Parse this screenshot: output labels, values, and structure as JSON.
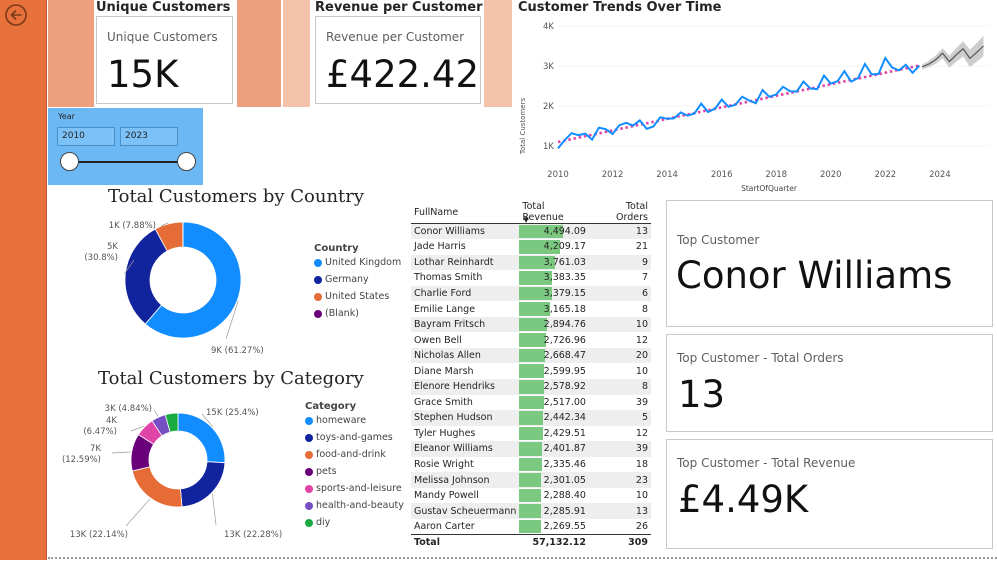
{
  "kpis": {
    "unique_customers_header": "Unique Customers",
    "unique_customers_label": "Unique Customers",
    "unique_customers_value": "15K",
    "revenue_per_customer_header": "Revenue per Customer",
    "revenue_per_customer_label": "Revenue per Customer",
    "revenue_per_customer_value": "£422.42"
  },
  "slicer": {
    "title": "Year",
    "from": "2010",
    "to": "2023"
  },
  "trend": {
    "title": "Customer Trends Over Time",
    "y_label": "Total Customers",
    "x_label": "StartOfQuarter",
    "y_ticks": [
      "1K",
      "2K",
      "3K",
      "4K"
    ],
    "x_ticks": [
      "2010",
      "2012",
      "2014",
      "2016",
      "2018",
      "2020",
      "2022",
      "2024"
    ]
  },
  "country_chart": {
    "title": "Total Customers by Country",
    "legend_title": "Country",
    "slices": [
      {
        "name": "United Kingdom",
        "value": 61.27,
        "color": "#118DFF",
        "label": "9K (61.27%)"
      },
      {
        "name": "Germany",
        "value": 30.8,
        "color": "#12239E",
        "label_line1": "5K",
        "label_line2": "(30.8%)"
      },
      {
        "name": "United States",
        "value": 7.88,
        "color": "#E66C37",
        "label": "1K (7.88%)"
      },
      {
        "name": "(Blank)",
        "value": 0.05,
        "color": "#6B007B",
        "label": ""
      }
    ]
  },
  "category_chart": {
    "title": "Total Customers by Category",
    "legend_title": "Category",
    "slices": [
      {
        "name": "homeware",
        "value": 25.4,
        "color": "#118DFF",
        "label": "15K (25.4%)"
      },
      {
        "name": "toys-and-games",
        "value": 22.28,
        "color": "#12239E",
        "label": "13K (22.28%)"
      },
      {
        "name": "food-and-drink",
        "value": 22.14,
        "color": "#E66C37",
        "label": "13K (22.14%)"
      },
      {
        "name": "pets",
        "value": 12.59,
        "color": "#6B007B",
        "label_line1": "7K",
        "label_line2": "(12.59%)"
      },
      {
        "name": "sports-and-leisure",
        "value": 6.47,
        "color": "#E044A7",
        "label_line1": "4K",
        "label_line2": "(6.47%)"
      },
      {
        "name": "health-and-beauty",
        "value": 4.84,
        "color": "#744EC2",
        "label": "3K (4.84%)"
      },
      {
        "name": "diy",
        "value": 4.28,
        "color": "#1AAB40",
        "label": ""
      }
    ]
  },
  "table": {
    "headers": [
      "FullName",
      "Total Revenue",
      "Total Orders"
    ],
    "rows": [
      {
        "name": "Conor Williams",
        "revenue": "4,494.09",
        "orders": "13",
        "rev_num": 4494.09
      },
      {
        "name": "Jade Harris",
        "revenue": "4,209.17",
        "orders": "21",
        "rev_num": 4209.17
      },
      {
        "name": "Lothar Reinhardt",
        "revenue": "3,761.03",
        "orders": "9",
        "rev_num": 3761.03
      },
      {
        "name": "Thomas Smith",
        "revenue": "3,383.35",
        "orders": "7",
        "rev_num": 3383.35
      },
      {
        "name": "Charlie Ford",
        "revenue": "3,379.15",
        "orders": "6",
        "rev_num": 3379.15
      },
      {
        "name": "Emilie Lange",
        "revenue": "3,165.18",
        "orders": "8",
        "rev_num": 3165.18
      },
      {
        "name": "Bayram Fritsch",
        "revenue": "2,894.76",
        "orders": "10",
        "rev_num": 2894.76
      },
      {
        "name": "Owen Bell",
        "revenue": "2,726.96",
        "orders": "12",
        "rev_num": 2726.96
      },
      {
        "name": "Nicholas Allen",
        "revenue": "2,668.47",
        "orders": "20",
        "rev_num": 2668.47
      },
      {
        "name": "Diane Marsh",
        "revenue": "2,599.95",
        "orders": "10",
        "rev_num": 2599.95
      },
      {
        "name": "Elenore Hendriks",
        "revenue": "2,578.92",
        "orders": "8",
        "rev_num": 2578.92
      },
      {
        "name": "Grace Smith",
        "revenue": "2,517.00",
        "orders": "39",
        "rev_num": 2517.0
      },
      {
        "name": "Stephen Hudson",
        "revenue": "2,442.34",
        "orders": "5",
        "rev_num": 2442.34
      },
      {
        "name": "Tyler Hughes",
        "revenue": "2,429.51",
        "orders": "12",
        "rev_num": 2429.51
      },
      {
        "name": "Eleanor Williams",
        "revenue": "2,401.87",
        "orders": "39",
        "rev_num": 2401.87
      },
      {
        "name": "Rosie Wright",
        "revenue": "2,335.46",
        "orders": "18",
        "rev_num": 2335.46
      },
      {
        "name": "Melissa Johnson",
        "revenue": "2,301.05",
        "orders": "23",
        "rev_num": 2301.05
      },
      {
        "name": "Mandy Powell",
        "revenue": "2,288.40",
        "orders": "10",
        "rev_num": 2288.4
      },
      {
        "name": "Gustav Scheuermann",
        "revenue": "2,285.91",
        "orders": "13",
        "rev_num": 2285.91
      },
      {
        "name": "Aaron Carter",
        "revenue": "2,269.55",
        "orders": "26",
        "rev_num": 2269.55
      }
    ],
    "total_label": "Total",
    "total_revenue": "57,132.12",
    "total_orders": "309"
  },
  "top_customer": {
    "label": "Top Customer",
    "value": "Conor Williams",
    "orders_label": "Top Customer - Total Orders",
    "orders_value": "13",
    "revenue_label": "Top Customer - Total Revenue",
    "revenue_value": "£4.49K"
  },
  "colors": {
    "sidebar": "#E8703A",
    "slicer": "#6BB8F5",
    "line": "#118DFF",
    "trend": "#E044A7",
    "forecast_band": "#C8C8C8",
    "bar": "#7BC981"
  }
}
